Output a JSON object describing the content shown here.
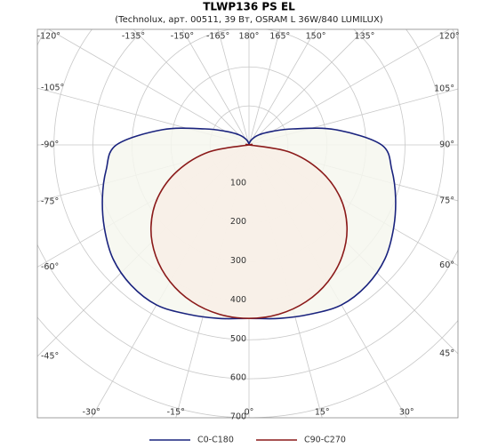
{
  "chart_data": {
    "type": "polar",
    "title": "TLWP136 PS EL",
    "subtitle": "(Technolux, арт. 00511, 39 Вт, OSRAM L 36W/840 LUMILUX)",
    "x": [
      -180,
      -170,
      -160,
      -150,
      -140,
      -130,
      -120,
      -110,
      -100,
      -90,
      -80,
      -70,
      -60,
      -50,
      -40,
      -30,
      -20,
      -10,
      0,
      10,
      20,
      30,
      40,
      50,
      60,
      70,
      80,
      90,
      100,
      110,
      120,
      130,
      140,
      150,
      160,
      170,
      180
    ],
    "series": [
      {
        "name": "C0-C180",
        "color": "#1a237e",
        "fill": "#f6f7ee",
        "values": [
          0,
          4,
          10,
          18,
          30,
          45,
          70,
          120,
          225,
          340,
          372,
          400,
          428,
          455,
          470,
          474,
          462,
          452,
          445,
          452,
          462,
          474,
          470,
          455,
          428,
          400,
          372,
          340,
          225,
          120,
          70,
          45,
          30,
          18,
          10,
          4,
          0
        ]
      },
      {
        "name": "C90-C270",
        "color": "#8b1a1a",
        "fill": "#f8eee6",
        "values": [
          0,
          0,
          0,
          0,
          0,
          0,
          0,
          0,
          0,
          0,
          105,
          195,
          270,
          328,
          372,
          405,
          428,
          441,
          445,
          441,
          428,
          405,
          372,
          328,
          270,
          195,
          105,
          0,
          0,
          0,
          0,
          0,
          0,
          0,
          0,
          0,
          0
        ]
      }
    ],
    "rlim": [
      0,
      700
    ],
    "rticks": [
      100,
      200,
      300,
      400,
      500,
      600,
      700
    ],
    "angle_ticks": [
      {
        "value": -165,
        "label": "-165°"
      },
      {
        "value": -150,
        "label": "-150°"
      },
      {
        "value": -135,
        "label": "-135°"
      },
      {
        "value": -120,
        "label": "-120°"
      },
      {
        "value": -105,
        "label": "-105°"
      },
      {
        "value": -90,
        "label": "-90°"
      },
      {
        "value": -75,
        "label": "-75°"
      },
      {
        "value": -60,
        "label": "-60°"
      },
      {
        "value": -45,
        "label": "-45°"
      },
      {
        "value": -30,
        "label": "-30°"
      },
      {
        "value": -15,
        "label": "-15°"
      },
      {
        "value": 0,
        "label": "0°"
      },
      {
        "value": 15,
        "label": "15°"
      },
      {
        "value": 30,
        "label": "30°"
      },
      {
        "value": 45,
        "label": "45°"
      },
      {
        "value": 60,
        "label": "60°"
      },
      {
        "value": 75,
        "label": "75°"
      },
      {
        "value": 90,
        "label": "90°"
      },
      {
        "value": 105,
        "label": "105°"
      },
      {
        "value": 120,
        "label": "120°"
      },
      {
        "value": 135,
        "label": "135°"
      },
      {
        "value": 150,
        "label": "150°"
      },
      {
        "value": 165,
        "label": "165°"
      },
      {
        "value": 180,
        "label": "180°"
      }
    ],
    "grid": true,
    "legend": "bottom"
  }
}
